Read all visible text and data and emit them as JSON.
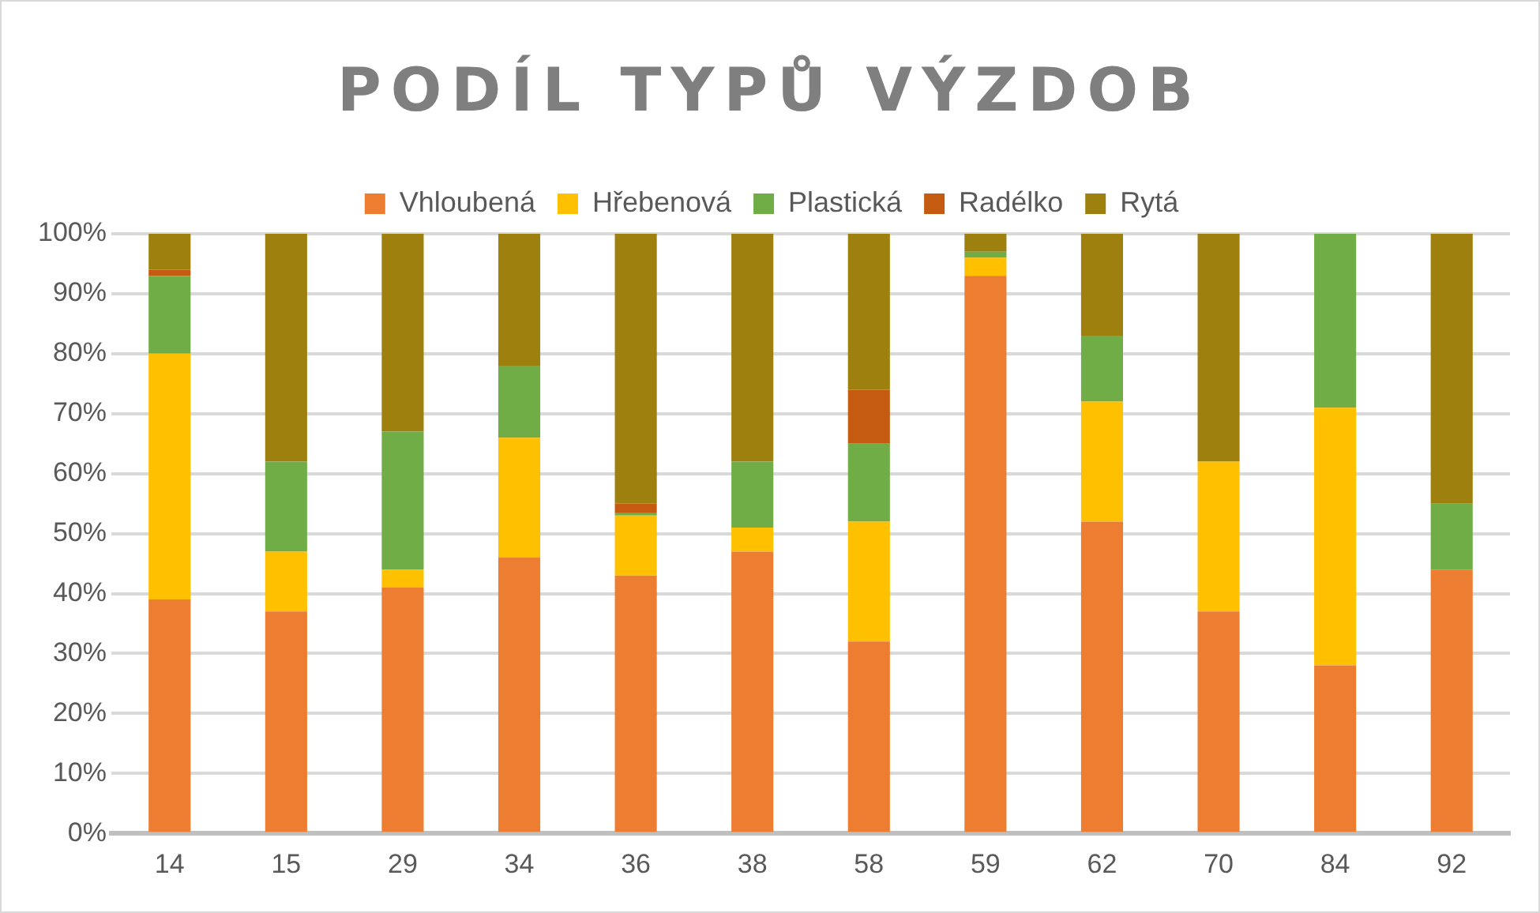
{
  "chart_data": {
    "type": "bar",
    "title": "PODÍL TYPŮ VÝZDOB",
    "stacked": true,
    "legend": "top",
    "grid": "y",
    "categories": [
      "14",
      "15",
      "29",
      "34",
      "36",
      "38",
      "58",
      "59",
      "62",
      "70",
      "84",
      "92"
    ],
    "series": [
      {
        "name": "Vhloubená",
        "color": "#ed7d31",
        "values": [
          39,
          37,
          41,
          46,
          43,
          47,
          32,
          93,
          52,
          37,
          28,
          44
        ]
      },
      {
        "name": "Hřebenová",
        "color": "#ffc000",
        "values": [
          41,
          10,
          3,
          20,
          10,
          4,
          20,
          3,
          20,
          25,
          43,
          0
        ]
      },
      {
        "name": "Plastická",
        "color": "#70ad47",
        "values": [
          13,
          15,
          23,
          12,
          0.5,
          11,
          13,
          1,
          11,
          0,
          29,
          11
        ]
      },
      {
        "name": "Radélko",
        "color": "#c55a11",
        "values": [
          1,
          0,
          0,
          0,
          1.5,
          0,
          9,
          0,
          0,
          0,
          0,
          0
        ]
      },
      {
        "name": "Rytá",
        "color": "#9e800e",
        "values": [
          6,
          38,
          33,
          22,
          45,
          38,
          26,
          3,
          17,
          38,
          0,
          45
        ]
      }
    ],
    "ylim": [
      0,
      100
    ],
    "yticks": [
      {
        "value": 0,
        "label": "0%"
      },
      {
        "value": 10,
        "label": "10%"
      },
      {
        "value": 20,
        "label": "20%"
      },
      {
        "value": 30,
        "label": "30%"
      },
      {
        "value": 40,
        "label": "40%"
      },
      {
        "value": 50,
        "label": "50%"
      },
      {
        "value": 60,
        "label": "60%"
      },
      {
        "value": 70,
        "label": "70%"
      },
      {
        "value": 80,
        "label": "80%"
      },
      {
        "value": 90,
        "label": "90%"
      },
      {
        "value": 100,
        "label": "100%"
      }
    ]
  }
}
